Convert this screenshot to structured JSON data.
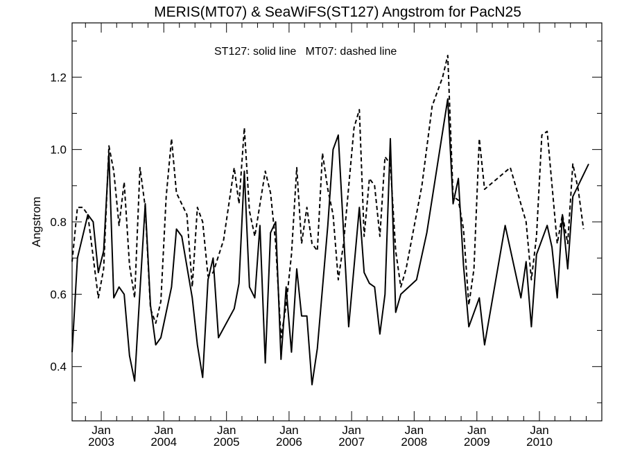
{
  "chart_data": {
    "type": "line",
    "title": "MERIS(MT07) & SeaWiFS(ST127)  Angstrom for PacN25",
    "annotation": "ST127: solid line   MT07: dashed line",
    "ylabel": "Angstrom",
    "xlabel": "",
    "ylim": [
      0.25,
      1.35
    ],
    "xlim": [
      "2002-07-15",
      "2010-12-31"
    ],
    "grid": false,
    "y_ticks": [
      {
        "value": 0.4,
        "label": "0.4"
      },
      {
        "value": 0.6,
        "label": "0.6"
      },
      {
        "value": 0.8,
        "label": "0.8"
      },
      {
        "value": 1.0,
        "label": "1.0"
      },
      {
        "value": 1.2,
        "label": "1.2"
      }
    ],
    "x_ticks": [
      {
        "date": "2003-01-01",
        "month": "Jan",
        "year": "2003"
      },
      {
        "date": "2004-01-01",
        "month": "Jan",
        "year": "2004"
      },
      {
        "date": "2005-01-01",
        "month": "Jan",
        "year": "2005"
      },
      {
        "date": "2006-01-01",
        "month": "Jan",
        "year": "2006"
      },
      {
        "date": "2007-01-01",
        "month": "Jan",
        "year": "2007"
      },
      {
        "date": "2008-01-01",
        "month": "Jan",
        "year": "2008"
      },
      {
        "date": "2009-01-01",
        "month": "Jan",
        "year": "2009"
      },
      {
        "date": "2010-01-01",
        "month": "Jan",
        "year": "2010"
      }
    ],
    "series": [
      {
        "style": "solid",
        "points": [
          [
            "2002-07-15",
            0.44
          ],
          [
            "2002-08-15",
            0.7
          ],
          [
            "2002-10-15",
            0.82
          ],
          [
            "2002-11-15",
            0.8
          ],
          [
            "2002-12-15",
            0.66
          ],
          [
            "2003-01-15",
            0.72
          ],
          [
            "2003-02-15",
            0.99
          ],
          [
            "2003-03-15",
            0.59
          ],
          [
            "2003-04-15",
            0.62
          ],
          [
            "2003-05-15",
            0.6
          ],
          [
            "2003-06-15",
            0.43
          ],
          [
            "2003-07-15",
            0.36
          ],
          [
            "2003-08-15",
            0.61
          ],
          [
            "2003-09-15",
            0.85
          ],
          [
            "2003-10-15",
            0.57
          ],
          [
            "2003-11-15",
            0.46
          ],
          [
            "2003-12-15",
            0.48
          ],
          [
            "2004-02-15",
            0.62
          ],
          [
            "2004-03-15",
            0.78
          ],
          [
            "2004-04-15",
            0.76
          ],
          [
            "2004-06-15",
            0.59
          ],
          [
            "2004-07-15",
            0.46
          ],
          [
            "2004-08-15",
            0.37
          ],
          [
            "2004-09-15",
            0.64
          ],
          [
            "2004-10-15",
            0.7
          ],
          [
            "2004-11-15",
            0.48
          ],
          [
            "2005-02-15",
            0.56
          ],
          [
            "2005-03-15",
            0.63
          ],
          [
            "2005-04-15",
            0.94
          ],
          [
            "2005-05-15",
            0.62
          ],
          [
            "2005-06-15",
            0.59
          ],
          [
            "2005-07-15",
            0.79
          ],
          [
            "2005-08-15",
            0.41
          ],
          [
            "2005-09-15",
            0.77
          ],
          [
            "2005-10-15",
            0.8
          ],
          [
            "2005-11-15",
            0.42
          ],
          [
            "2005-12-15",
            0.62
          ],
          [
            "2006-01-15",
            0.44
          ],
          [
            "2006-02-15",
            0.67
          ],
          [
            "2006-03-15",
            0.54
          ],
          [
            "2006-04-15",
            0.54
          ],
          [
            "2006-05-15",
            0.35
          ],
          [
            "2006-06-15",
            0.45
          ],
          [
            "2006-08-15",
            0.79
          ],
          [
            "2006-09-15",
            1.0
          ],
          [
            "2006-10-15",
            1.04
          ],
          [
            "2006-12-15",
            0.51
          ],
          [
            "2007-02-15",
            0.84
          ],
          [
            "2007-03-15",
            0.66
          ],
          [
            "2007-04-15",
            0.63
          ],
          [
            "2007-05-15",
            0.62
          ],
          [
            "2007-06-15",
            0.49
          ],
          [
            "2007-07-15",
            0.6
          ],
          [
            "2007-08-15",
            1.03
          ],
          [
            "2007-09-15",
            0.55
          ],
          [
            "2007-10-15",
            0.6
          ],
          [
            "2008-01-15",
            0.64
          ],
          [
            "2008-03-15",
            0.77
          ],
          [
            "2008-07-15",
            1.14
          ],
          [
            "2008-08-15",
            0.85
          ],
          [
            "2008-09-15",
            0.92
          ],
          [
            "2008-10-15",
            0.68
          ],
          [
            "2008-11-15",
            0.51
          ],
          [
            "2009-01-15",
            0.59
          ],
          [
            "2009-02-15",
            0.46
          ],
          [
            "2009-06-15",
            0.79
          ],
          [
            "2009-09-15",
            0.59
          ],
          [
            "2009-10-15",
            0.69
          ],
          [
            "2009-11-15",
            0.51
          ],
          [
            "2009-12-15",
            0.71
          ],
          [
            "2010-02-15",
            0.79
          ],
          [
            "2010-03-15",
            0.73
          ],
          [
            "2010-04-15",
            0.59
          ],
          [
            "2010-05-15",
            0.82
          ],
          [
            "2010-06-15",
            0.67
          ],
          [
            "2010-07-15",
            0.87
          ],
          [
            "2010-10-15",
            0.96
          ]
        ]
      },
      {
        "style": "dashed",
        "points": [
          [
            "2002-07-15",
            0.69
          ],
          [
            "2002-08-15",
            0.84
          ],
          [
            "2002-09-15",
            0.84
          ],
          [
            "2002-10-15",
            0.82
          ],
          [
            "2002-12-15",
            0.59
          ],
          [
            "2003-01-15",
            0.67
          ],
          [
            "2003-02-15",
            1.01
          ],
          [
            "2003-03-15",
            0.94
          ],
          [
            "2003-04-15",
            0.79
          ],
          [
            "2003-05-15",
            0.91
          ],
          [
            "2003-06-15",
            0.68
          ],
          [
            "2003-07-15",
            0.59
          ],
          [
            "2003-08-15",
            0.95
          ],
          [
            "2003-09-15",
            0.84
          ],
          [
            "2003-10-15",
            0.56
          ],
          [
            "2003-11-15",
            0.52
          ],
          [
            "2003-12-15",
            0.58
          ],
          [
            "2004-01-15",
            0.87
          ],
          [
            "2004-02-15",
            1.03
          ],
          [
            "2004-03-15",
            0.88
          ],
          [
            "2004-05-15",
            0.82
          ],
          [
            "2004-06-15",
            0.62
          ],
          [
            "2004-07-15",
            0.84
          ],
          [
            "2004-08-15",
            0.8
          ],
          [
            "2004-09-15",
            0.65
          ],
          [
            "2004-10-15",
            0.66
          ],
          [
            "2004-12-15",
            0.75
          ],
          [
            "2005-02-15",
            0.95
          ],
          [
            "2005-03-15",
            0.85
          ],
          [
            "2005-04-15",
            1.06
          ],
          [
            "2005-05-15",
            0.83
          ],
          [
            "2005-06-15",
            0.76
          ],
          [
            "2005-08-15",
            0.94
          ],
          [
            "2005-09-15",
            0.88
          ],
          [
            "2005-10-15",
            0.74
          ],
          [
            "2005-11-15",
            0.48
          ],
          [
            "2005-12-15",
            0.57
          ],
          [
            "2006-01-15",
            0.71
          ],
          [
            "2006-02-15",
            0.95
          ],
          [
            "2006-03-15",
            0.74
          ],
          [
            "2006-04-15",
            0.84
          ],
          [
            "2006-05-15",
            0.74
          ],
          [
            "2006-06-15",
            0.72
          ],
          [
            "2006-07-15",
            0.99
          ],
          [
            "2006-08-15",
            0.89
          ],
          [
            "2006-09-15",
            0.82
          ],
          [
            "2006-10-15",
            0.64
          ],
          [
            "2006-11-15",
            0.74
          ],
          [
            "2007-01-15",
            1.06
          ],
          [
            "2007-02-15",
            1.11
          ],
          [
            "2007-03-15",
            0.76
          ],
          [
            "2007-04-15",
            0.92
          ],
          [
            "2007-05-15",
            0.9
          ],
          [
            "2007-06-15",
            0.76
          ],
          [
            "2007-07-15",
            0.98
          ],
          [
            "2007-08-15",
            0.96
          ],
          [
            "2007-09-15",
            0.72
          ],
          [
            "2007-10-15",
            0.62
          ],
          [
            "2007-11-15",
            0.67
          ],
          [
            "2008-02-15",
            0.9
          ],
          [
            "2008-04-15",
            1.12
          ],
          [
            "2008-06-15",
            1.2
          ],
          [
            "2008-07-15",
            1.26
          ],
          [
            "2008-08-15",
            0.87
          ],
          [
            "2008-09-15",
            0.86
          ],
          [
            "2008-10-15",
            0.78
          ],
          [
            "2008-11-15",
            0.57
          ],
          [
            "2008-12-15",
            0.67
          ],
          [
            "2009-01-15",
            1.03
          ],
          [
            "2009-02-15",
            0.89
          ],
          [
            "2009-07-15",
            0.95
          ],
          [
            "2009-10-15",
            0.8
          ],
          [
            "2009-11-15",
            0.64
          ],
          [
            "2009-12-15",
            0.76
          ],
          [
            "2010-01-15",
            1.04
          ],
          [
            "2010-02-15",
            1.05
          ],
          [
            "2010-04-15",
            0.74
          ],
          [
            "2010-05-15",
            0.82
          ],
          [
            "2010-06-15",
            0.74
          ],
          [
            "2010-07-15",
            0.96
          ],
          [
            "2010-08-15",
            0.89
          ],
          [
            "2010-09-15",
            0.78
          ]
        ]
      }
    ]
  }
}
